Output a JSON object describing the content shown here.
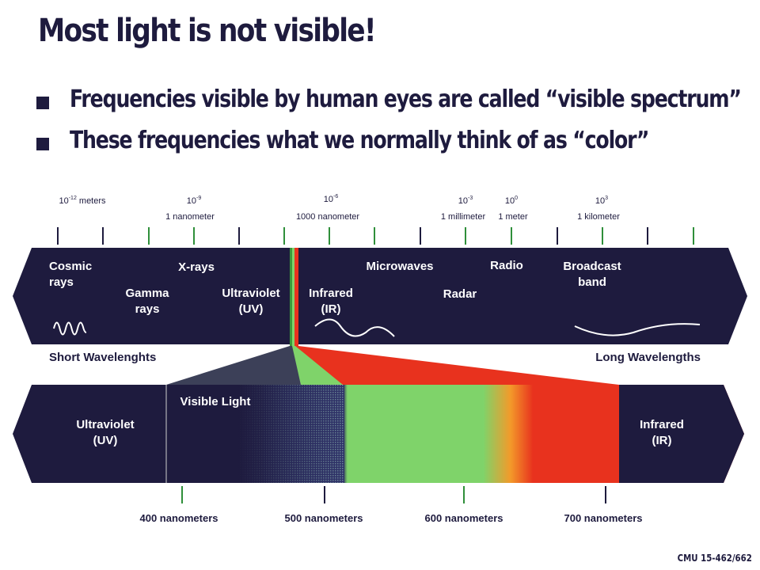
{
  "slide": {
    "title": "Most light is not visible!",
    "bullets": [
      "Frequencies visible by human eyes are called “visible spectrum”",
      "These frequencies what we normally think of as “color”"
    ],
    "footer": "CMU 15-462/662"
  },
  "scale": {
    "powers": [
      {
        "base": "10",
        "exp": "-12",
        "unit": " meters"
      },
      {
        "base": "10",
        "exp": "-9",
        "unit": ""
      },
      {
        "base": "10",
        "exp": "-6",
        "unit": ""
      },
      {
        "base": "10",
        "exp": "-3",
        "unit": ""
      },
      {
        "base": "10",
        "exp": "0",
        "unit": ""
      },
      {
        "base": "10",
        "exp": "3",
        "unit": ""
      }
    ],
    "unit_labels": [
      "1 nanometer",
      "1000 nanometer",
      "1 millimeter",
      "1 meter",
      "1 kilometer"
    ]
  },
  "spectrum": {
    "cosmic": [
      "Cosmic",
      "rays"
    ],
    "xrays": "X-rays",
    "gamma": [
      "Gamma",
      "rays"
    ],
    "uv": [
      "Ultraviolet",
      "(UV)"
    ],
    "ir": [
      "Infrared",
      "(IR)"
    ],
    "microwaves": "Microwaves",
    "radar": "Radar",
    "radio": "Radio",
    "broadcast": [
      "Broadcast",
      "band"
    ],
    "short": "Short Wavelenghts",
    "long": "Long Wavelengths"
  },
  "visible": {
    "label": "Visible Light",
    "uv": [
      "Ultraviolet",
      "(UV)"
    ],
    "ir": [
      "Infrared",
      "(IR)"
    ],
    "nm_labels": [
      "400 nanometers",
      "500 nanometers",
      "600 nanometers",
      "700 nanometers"
    ]
  },
  "colors": {
    "band": "#1e1b3e",
    "green": "#7fd36a",
    "red": "#e8321e",
    "orange": "#f39a2a"
  }
}
